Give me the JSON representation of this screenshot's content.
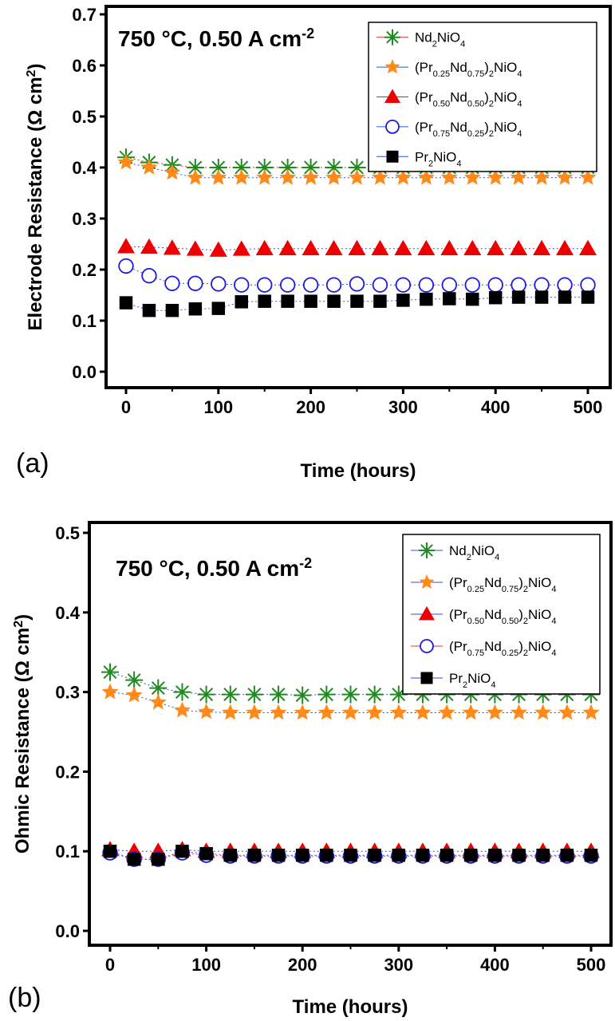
{
  "chart_data": [
    {
      "type": "scatter",
      "panel_label": "(a)",
      "title": "750 °C, 0.50 A cm",
      "title_sup": "-2",
      "xlabel": "Time (hours)",
      "ylabel": "Electrode Resistance (Ω cm",
      "ylabel_sup": "2",
      "ylabel_end": ")",
      "xlim": [
        -25,
        525
      ],
      "ylim": [
        0.0,
        0.7
      ],
      "xticks": [
        0,
        100,
        200,
        300,
        400,
        500
      ],
      "yticks": [
        "0.0",
        "0.1",
        "0.2",
        "0.3",
        "0.4",
        "0.5",
        "0.6",
        "0.7"
      ],
      "legend_position": "top-right",
      "x": [
        0,
        25,
        50,
        75,
        100,
        125,
        150,
        175,
        200,
        225,
        250,
        275,
        300,
        325,
        350,
        375,
        400,
        425,
        450,
        475,
        500
      ],
      "series": [
        {
          "name": "Nd2NiO4",
          "marker": "asterisk",
          "color": "#1f8a1f",
          "line": "#e03030",
          "values": [
            0.42,
            0.41,
            0.405,
            0.4,
            0.4,
            0.4,
            0.4,
            0.4,
            0.4,
            0.4,
            0.4,
            0.4,
            0.4,
            0.4,
            0.4,
            0.4,
            0.4,
            0.4,
            0.4,
            0.4,
            0.4
          ]
        },
        {
          "name": "(Pr0.25Nd0.75)2NiO4",
          "marker": "star",
          "color": "#ff8a1a",
          "line": "#3050e0",
          "values": [
            0.41,
            0.4,
            0.39,
            0.38,
            0.38,
            0.38,
            0.38,
            0.38,
            0.38,
            0.38,
            0.38,
            0.38,
            0.38,
            0.38,
            0.38,
            0.38,
            0.38,
            0.38,
            0.38,
            0.38,
            0.38
          ]
        },
        {
          "name": "(Pr0.50Nd0.50)2NiO4",
          "marker": "triangle",
          "color": "#ee0000",
          "line": "#3050e0",
          "values": [
            0.245,
            0.244,
            0.242,
            0.24,
            0.238,
            0.24,
            0.241,
            0.241,
            0.241,
            0.241,
            0.241,
            0.241,
            0.241,
            0.241,
            0.241,
            0.241,
            0.241,
            0.241,
            0.241,
            0.241,
            0.241
          ]
        },
        {
          "name": "(Pr0.75Nd0.25)2NiO4",
          "marker": "circle",
          "color": "#1a1ae0",
          "line": "#3050e0",
          "values": [
            0.207,
            0.188,
            0.173,
            0.173,
            0.172,
            0.17,
            0.17,
            0.17,
            0.17,
            0.17,
            0.172,
            0.17,
            0.17,
            0.17,
            0.17,
            0.17,
            0.17,
            0.17,
            0.17,
            0.17,
            0.17
          ]
        },
        {
          "name": "Pr2NiO4",
          "marker": "square",
          "color": "#000000",
          "line": "#3050e0",
          "values": [
            0.135,
            0.12,
            0.12,
            0.123,
            0.124,
            0.137,
            0.138,
            0.138,
            0.138,
            0.138,
            0.138,
            0.138,
            0.14,
            0.142,
            0.143,
            0.142,
            0.145,
            0.146,
            0.146,
            0.146,
            0.146
          ]
        }
      ]
    },
    {
      "type": "scatter",
      "panel_label": "(b)",
      "title": "750 °C, 0.50 A cm",
      "title_sup": "-2",
      "xlabel": "Time (hours)",
      "ylabel": "Ohmic Resistance (Ω cm",
      "ylabel_sup": "2",
      "ylabel_end": ")",
      "xlim": [
        -25,
        525
      ],
      "ylim": [
        0.0,
        0.5
      ],
      "xticks": [
        0,
        100,
        200,
        300,
        400,
        500
      ],
      "yticks": [
        "0.0",
        "0.1",
        "0.2",
        "0.3",
        "0.4",
        "0.5"
      ],
      "legend_position": "top-right",
      "x": [
        0,
        25,
        50,
        75,
        100,
        125,
        150,
        175,
        200,
        225,
        250,
        275,
        300,
        325,
        350,
        375,
        400,
        425,
        450,
        475,
        500
      ],
      "series": [
        {
          "name": "Nd2NiO4",
          "marker": "asterisk",
          "color": "#1f8a1f",
          "line": "#3050e0",
          "values": [
            0.325,
            0.315,
            0.305,
            0.3,
            0.297,
            0.297,
            0.297,
            0.297,
            0.296,
            0.297,
            0.297,
            0.297,
            0.297,
            0.297,
            0.297,
            0.297,
            0.297,
            0.297,
            0.297,
            0.297,
            0.297
          ]
        },
        {
          "name": "(Pr0.25Nd0.75)2NiO4",
          "marker": "star",
          "color": "#ff8a1a",
          "line": "#3050e0",
          "values": [
            0.3,
            0.296,
            0.287,
            0.277,
            0.275,
            0.274,
            0.274,
            0.274,
            0.274,
            0.274,
            0.274,
            0.274,
            0.274,
            0.274,
            0.274,
            0.274,
            0.274,
            0.274,
            0.274,
            0.274,
            0.274
          ]
        },
        {
          "name": "(Pr0.50Nd0.50)2NiO4",
          "marker": "triangle",
          "color": "#ee0000",
          "line": "#3050e0",
          "values": [
            0.102,
            0.1,
            0.1,
            0.102,
            0.1,
            0.1,
            0.1,
            0.1,
            0.1,
            0.1,
            0.1,
            0.1,
            0.1,
            0.1,
            0.1,
            0.1,
            0.1,
            0.1,
            0.1,
            0.1,
            0.1
          ]
        },
        {
          "name": "(Pr0.75Nd0.25)2NiO4",
          "marker": "circle",
          "color": "#1a1ae0",
          "line": "#e03030",
          "values": [
            0.098,
            0.09,
            0.09,
            0.098,
            0.095,
            0.094,
            0.094,
            0.094,
            0.094,
            0.094,
            0.094,
            0.094,
            0.094,
            0.094,
            0.094,
            0.094,
            0.094,
            0.094,
            0.094,
            0.094,
            0.094
          ]
        },
        {
          "name": "Pr2NiO4",
          "marker": "square",
          "color": "#000000",
          "line": "#3050e0",
          "values": [
            0.1,
            0.09,
            0.09,
            0.1,
            0.097,
            0.095,
            0.095,
            0.095,
            0.095,
            0.095,
            0.095,
            0.095,
            0.095,
            0.095,
            0.095,
            0.095,
            0.095,
            0.095,
            0.095,
            0.095,
            0.095
          ]
        }
      ]
    }
  ]
}
